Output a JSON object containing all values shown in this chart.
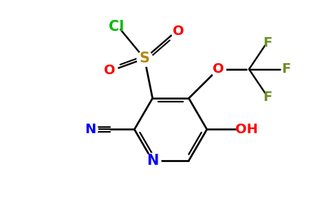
{
  "background_color": "#ffffff",
  "figsize": [
    4.84,
    3.0
  ],
  "dpi": 100,
  "colors": {
    "bond": "#000000",
    "N": "#0000ff",
    "S": "#b8860b",
    "O": "#ff0000",
    "Cl": "#00bb00",
    "F": "#6b8e23",
    "OH": "#ff0000"
  }
}
